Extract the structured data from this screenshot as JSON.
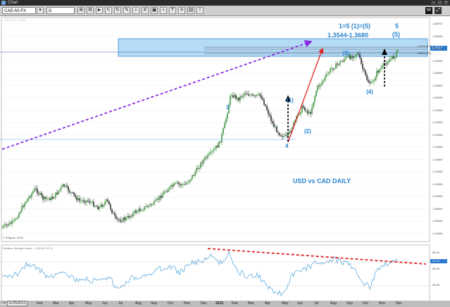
{
  "window": {
    "title": "Chart"
  },
  "toolbar": {
    "symbol": "CAD A0-FX",
    "interval": "D",
    "top_right_button": "M"
  },
  "chart": {
    "indicator_label": "Relative Strength Index · CAD A0-FX, D",
    "copyright": "© eSignal, 2015",
    "watermark_header": "CAD A0-FX Daily",
    "y_ticks_price": [
      "1.38767",
      "1.36000",
      "1.34000",
      "1.32000",
      "1.30000",
      "1.28000",
      "1.26000",
      "1.24000",
      "1.22000",
      "1.20000",
      "1.18000",
      "1.16000",
      "1.14000",
      "1.12000",
      "1.10000",
      "1.08000",
      "1.06000",
      "1.04000"
    ],
    "y_ticks_rsi": [
      "80.00",
      "70.23",
      "60.00",
      "40.00"
    ],
    "current_price_tag": "1.3667",
    "fib_label_1": "1.3723 (1.3...",
    "fib_label_2": "1.3619 (1.3..."
  },
  "annotations": {
    "target_line1": "1=5    (1)=(5)",
    "target_line2": "1.3544-1.3680",
    "w3": "3",
    "w4": "4",
    "w1p": "(1)",
    "w2p": "(2)",
    "w3p": "(3)",
    "w4p": "(4)",
    "w5": "5",
    "w5p": "(5)",
    "pair": "USD vs CAD DAILY"
  },
  "xaxis": {
    "date_box": "11/25/2013",
    "dyn": "Dyn",
    "labels": [
      "Feb",
      "Mar",
      "Apr",
      "May",
      "Jun",
      "Jul",
      "Aug",
      "Sep",
      "Oct",
      "Nov",
      "Dec",
      "2015",
      "Feb",
      "Mar",
      "Apr",
      "May",
      "Jun",
      "Jul",
      "Aug",
      "Sep",
      "Oct",
      "Nov",
      "Dec"
    ]
  },
  "colors": {
    "up_candle": "#2a8a2a",
    "down_candle": "#111111",
    "annotation": "#2b86d1",
    "target_zone": "#8ec9f2",
    "trendline_purple": "#8a2be2",
    "arrow_red": "#e02020",
    "rsi_line": "#4a9fd8",
    "rsi_trend": "#e02020"
  }
}
